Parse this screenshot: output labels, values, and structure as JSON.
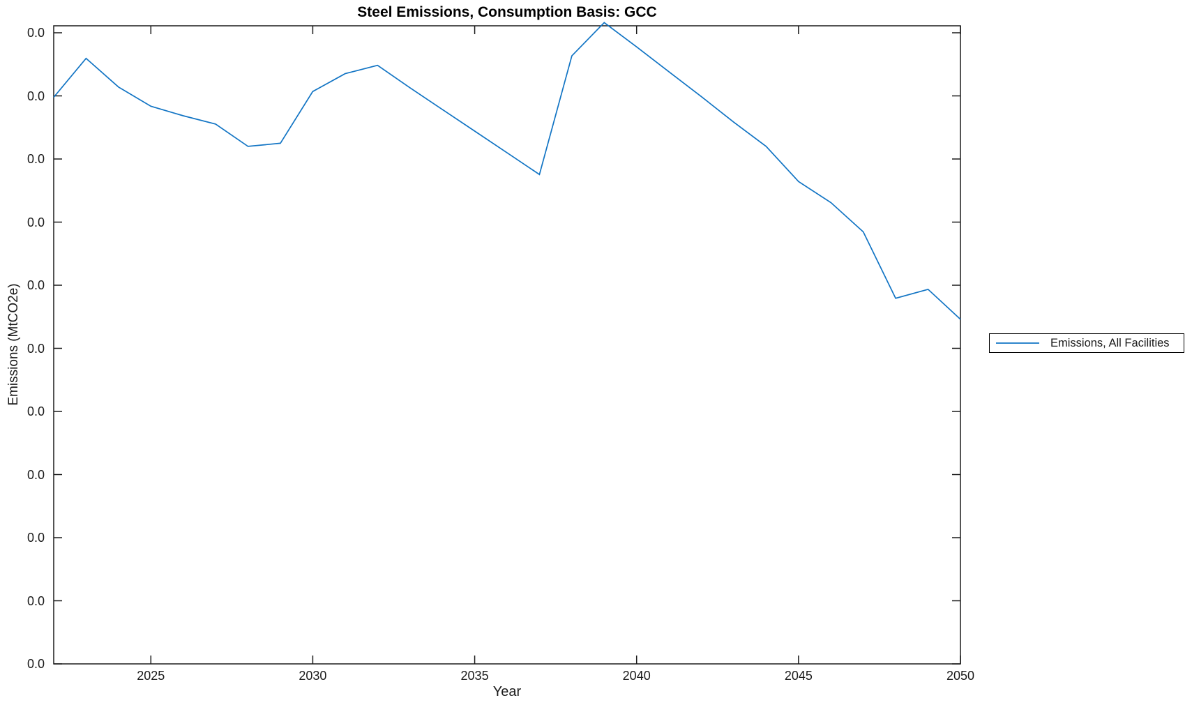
{
  "chart_data": {
    "type": "line",
    "title": "Steel Emissions, Consumption Basis: GCC",
    "xlabel": "Year",
    "ylabel": "Emissions (MtCO2e)",
    "xlim": [
      2022,
      2050
    ],
    "xticks": [
      2025,
      2030,
      2035,
      2040,
      2045,
      2050
    ],
    "ytick_labels": [
      "0.0",
      "0.0",
      "0.0",
      "0.0",
      "0.0",
      "0.0",
      "0.0",
      "0.0",
      "0.0",
      "0.0",
      "0.0"
    ],
    "grid": false,
    "tick_style": {
      "direction": "in",
      "mirrored": true
    },
    "axis_color": "#1a1a1a",
    "legend": {
      "position": "right-outside",
      "entries": [
        {
          "label": "Emissions, All Facilities",
          "color": "#1174c4"
        }
      ]
    },
    "series": [
      {
        "name": "Emissions, All Facilities",
        "color": "#1174c4",
        "unit": "fraction of plot height (all y tick labels read 0.0)",
        "x": [
          2022,
          2023,
          2024,
          2025,
          2026,
          2027,
          2028,
          2029,
          2030,
          2031,
          2032,
          2033,
          2034,
          2035,
          2036,
          2037,
          2038,
          2039,
          2040,
          2041,
          2042,
          2043,
          2044,
          2045,
          2046,
          2047,
          2048,
          2049,
          2050
        ],
        "y": [
          0.888,
          0.949,
          0.904,
          0.874,
          0.859,
          0.846,
          0.811,
          0.816,
          0.897,
          0.925,
          0.938,
          0.903,
          0.869,
          0.835,
          0.801,
          0.767,
          0.953,
          1.005,
          0.967,
          0.928,
          0.889,
          0.849,
          0.811,
          0.756,
          0.723,
          0.677,
          0.573,
          0.587,
          0.54
        ]
      }
    ]
  }
}
